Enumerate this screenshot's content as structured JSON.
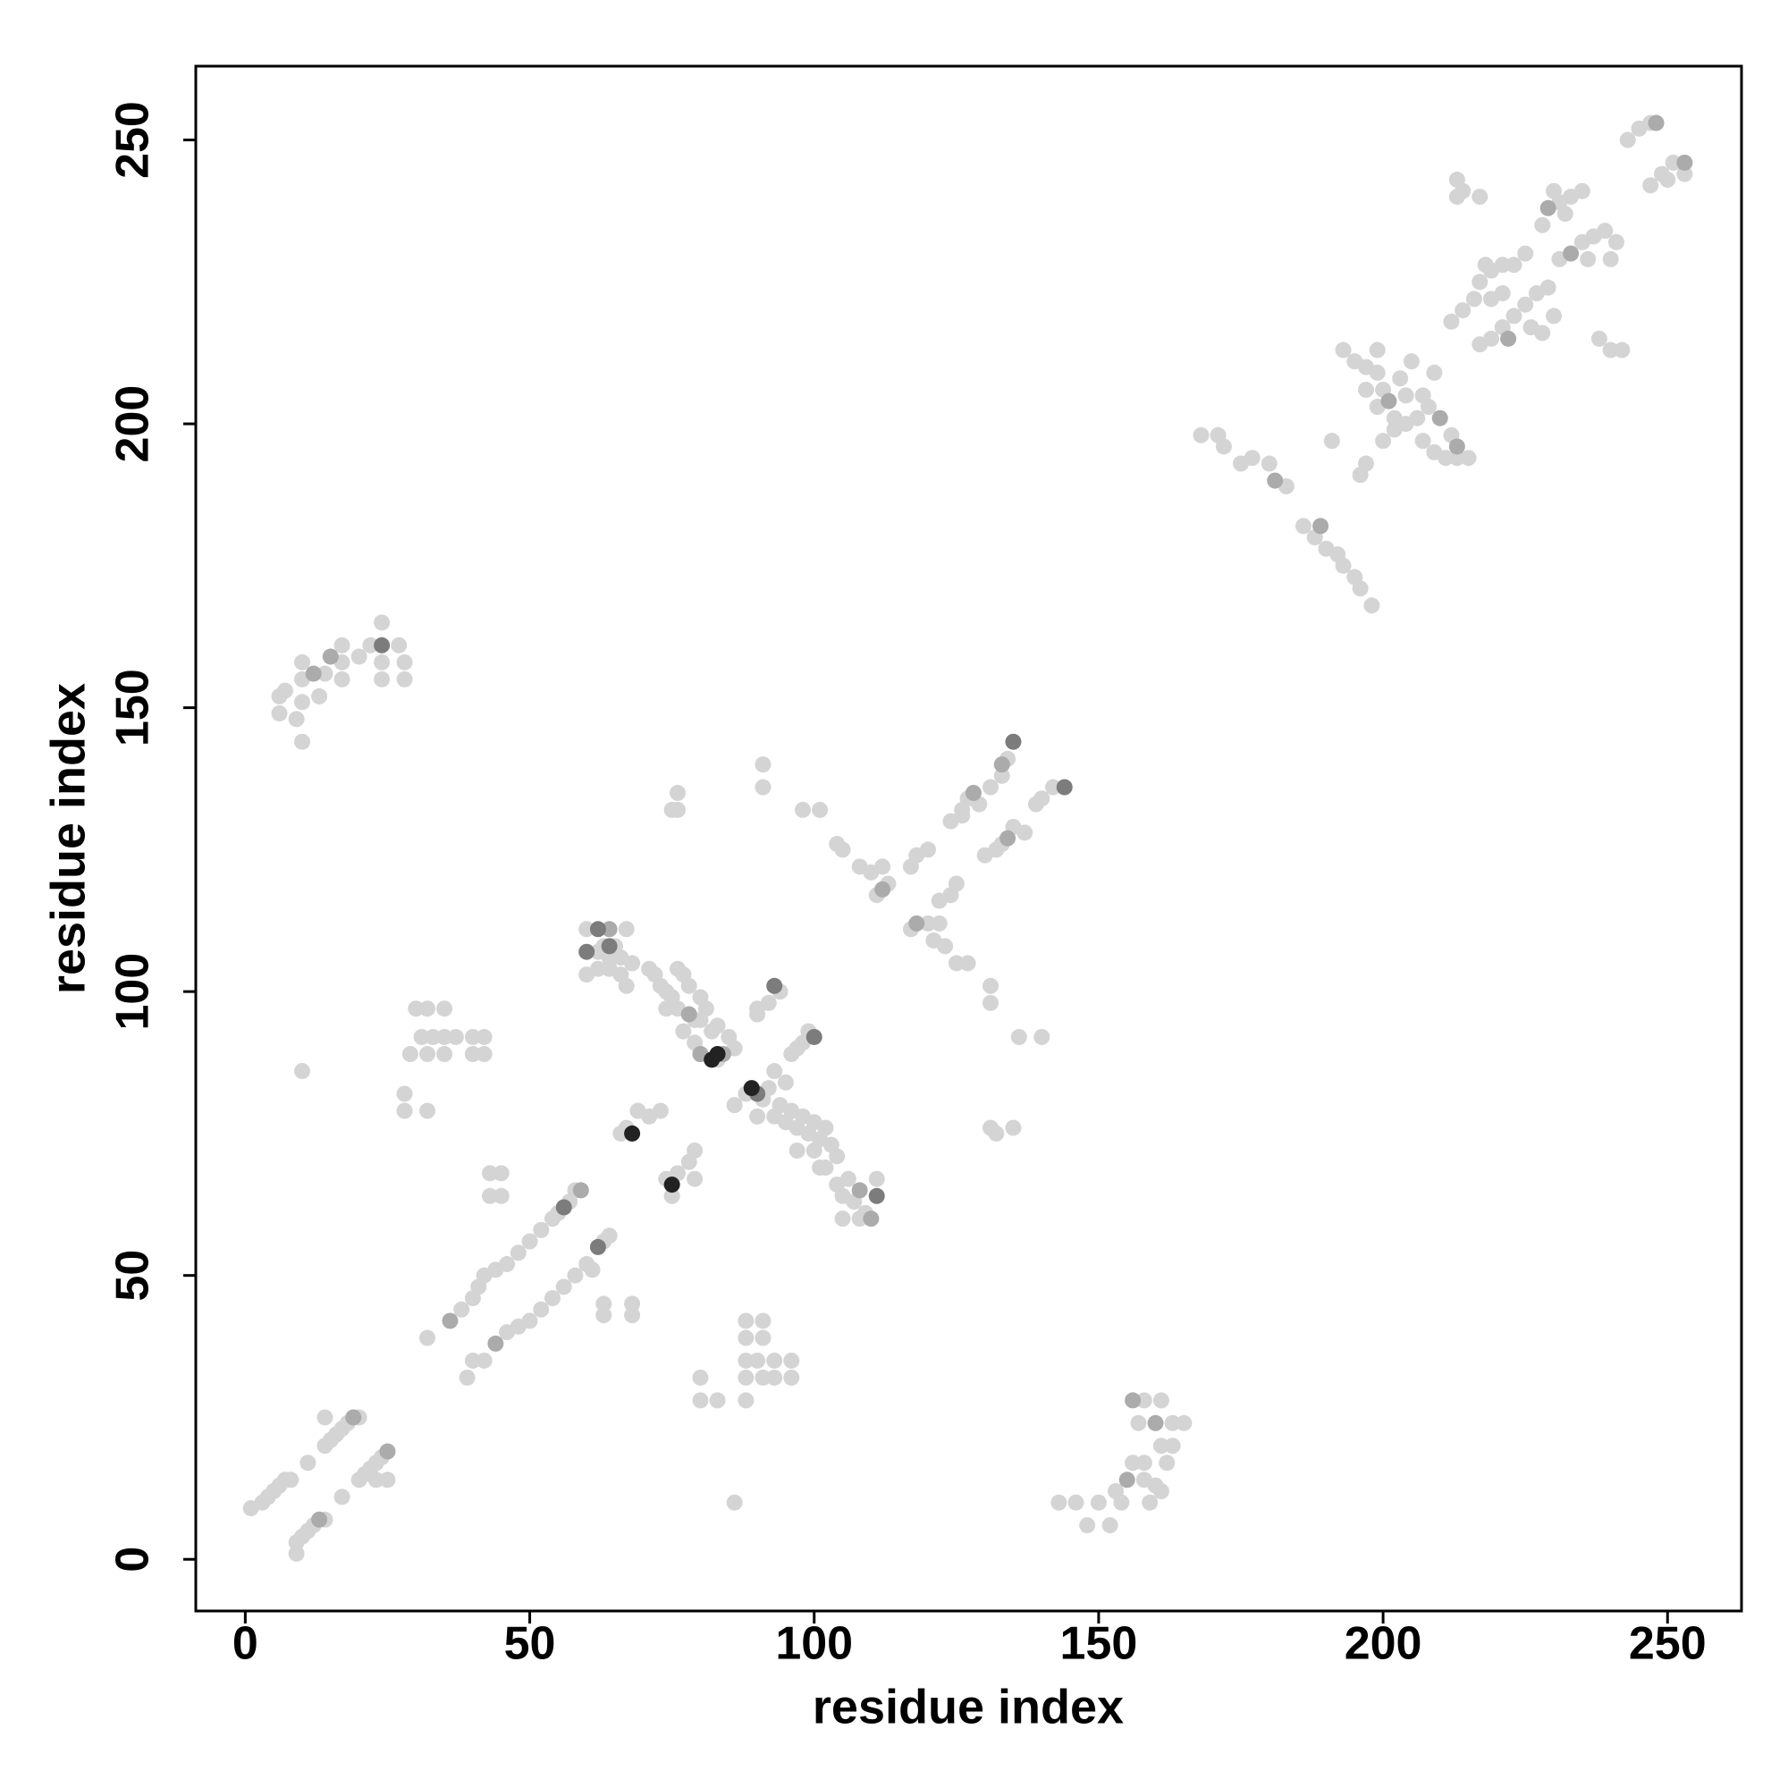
{
  "chart_data": {
    "type": "scatter",
    "x_label": "residue index",
    "y_label": "residue index",
    "xlim": [
      -8.7,
      263
    ],
    "ylim": [
      -9.1,
      263
    ],
    "xticks": [
      0,
      50,
      100,
      150,
      200,
      250
    ],
    "yticks": [
      0,
      50,
      100,
      150,
      200,
      250
    ],
    "series": [
      {
        "color": "#d4d4d4",
        "x": [
          1,
          3,
          4,
          5,
          6,
          7,
          8,
          14,
          15,
          16,
          17,
          18,
          20,
          14,
          9,
          9,
          10,
          11,
          12,
          14,
          17,
          20,
          21,
          22,
          23,
          24,
          25,
          23,
          11,
          38,
          40,
          41,
          42,
          44,
          46,
          48,
          50,
          52,
          54,
          55,
          57,
          58,
          40,
          42,
          46,
          48,
          50,
          52,
          54,
          56,
          58,
          60,
          63,
          64,
          61,
          32,
          39,
          43,
          43,
          45,
          45,
          63,
          63,
          68,
          68,
          60,
          67,
          63,
          65,
          62,
          64,
          66,
          68,
          62,
          64,
          66,
          60,
          67,
          71,
          72,
          73,
          74,
          75,
          76,
          77,
          78,
          76,
          80,
          82,
          77,
          79,
          80,
          83,
          81,
          80,
          83,
          85,
          86,
          79,
          74,
          86,
          88,
          91,
          92,
          93,
          94,
          95,
          96,
          97,
          98,
          99,
          100,
          101,
          102,
          103,
          104,
          100,
          102,
          104,
          105,
          106,
          107,
          109,
          111,
          105,
          108,
          101,
          97,
          93,
          95,
          90,
          90,
          92,
          94,
          96,
          97,
          98,
          99,
          90,
          66,
          67,
          69,
          71,
          73,
          74,
          76,
          78,
          79,
          79,
          75,
          28,
          28,
          32,
          30,
          32,
          35,
          31,
          33,
          35,
          37,
          40,
          42,
          29,
          32,
          35,
          40,
          42,
          10,
          75,
          76,
          76,
          91,
          91,
          98,
          101,
          86,
          88,
          91,
          88,
          91,
          88,
          90,
          93,
          88,
          91,
          93,
          96,
          96,
          80,
          80,
          83,
          88,
          104,
          105,
          108,
          110,
          112,
          113,
          111,
          117,
          118,
          120,
          124,
          126,
          127,
          129,
          131,
          134,
          133,
          126,
          117,
          120,
          122,
          121,
          123,
          122,
          124,
          125,
          125,
          127,
          130,
          132,
          133,
          135,
          137,
          139,
          140,
          142,
          131,
          131,
          131,
          132,
          135,
          136,
          140,
          6,
          6,
          7,
          9,
          10,
          10,
          10,
          10,
          13,
          14,
          17,
          17,
          17,
          20,
          22,
          24,
          24,
          24,
          27,
          28,
          28,
          143,
          146,
          148,
          150,
          152,
          153,
          154,
          157,
          158,
          156,
          158,
          161,
          161,
          160,
          162,
          163,
          165,
          159,
          158,
          161,
          163,
          168,
          171,
          172,
          175,
          177,
          180,
          183,
          186,
          188,
          190,
          192,
          193,
          195,
          196,
          198,
          191,
          196,
          197,
          193,
          195,
          197,
          199,
          200,
          203,
          205,
          197,
          199,
          202,
          204,
          207,
          209,
          199,
          200,
          202,
          204,
          206,
          208,
          212,
          215,
          207,
          209,
          211,
          213,
          213,
          213,
          214,
          217,
          212,
          214,
          216,
          217,
          218,
          219,
          221,
          223,
          219,
          221,
          225,
          228,
          230,
          231,
          233,
          235,
          232,
          217,
          219,
          221,
          223,
          225,
          227,
          229,
          226,
          228,
          230,
          231,
          235,
          237,
          239,
          241,
          240,
          236,
          238,
          240,
          242,
          243,
          245,
          247,
          247,
          249,
          251,
          253,
          250
        ],
        "values": [
          9,
          10,
          11,
          12,
          13,
          14,
          14,
          20,
          21,
          22,
          23,
          24,
          25,
          25,
          1,
          3,
          4,
          5,
          6,
          7,
          11,
          14,
          15,
          16,
          17,
          18,
          14,
          14,
          17,
          44,
          46,
          48,
          50,
          51,
          52,
          54,
          56,
          58,
          60,
          61,
          63,
          65,
          35,
          35,
          40,
          41,
          42,
          44,
          46,
          48,
          50,
          52,
          56,
          57,
          51,
          39,
          32,
          68,
          64,
          68,
          64,
          45,
          43,
          45,
          43,
          111,
          111,
          108,
          108,
          107,
          106,
          106,
          105,
          104,
          104,
          103,
          103,
          101,
          104,
          103,
          101,
          100,
          99,
          104,
          103,
          101,
          97,
          95,
          93,
          93,
          91,
          89,
          88,
          97,
          99,
          94,
          92,
          90,
          95,
          97,
          80,
          82,
          81,
          83,
          78,
          80,
          77,
          79,
          76,
          78,
          75,
          77,
          74,
          76,
          73,
          71,
          72,
          69,
          66,
          64,
          67,
          63,
          61,
          67,
          60,
          60,
          69,
          72,
          86,
          84,
          78,
          97,
          98,
          100,
          89,
          90,
          91,
          93,
          96,
          75,
          76,
          79,
          78,
          79,
          67,
          68,
          70,
          72,
          67,
          64,
          82,
          79,
          79,
          97,
          97,
          97,
          92,
          92,
          92,
          92,
          92,
          92,
          89,
          89,
          89,
          89,
          89,
          86,
          132,
          135,
          132,
          140,
          136,
          132,
          132,
          10,
          42,
          42,
          39,
          39,
          35,
          35,
          35,
          32,
          32,
          32,
          32,
          35,
          32,
          28,
          28,
          28,
          126,
          125,
          122,
          121,
          122,
          119,
          117,
          122,
          124,
          125,
          130,
          132,
          134,
          133,
          136,
          141,
          138,
          131,
          111,
          112,
          112,
          109,
          108,
          116,
          117,
          119,
          105,
          105,
          124,
          125,
          126,
          129,
          128,
          133,
          134,
          136,
          101,
          98,
          76,
          75,
          76,
          92,
          92,
          149,
          152,
          153,
          148,
          151,
          155,
          158,
          144,
          152,
          156,
          155,
          158,
          161,
          159,
          161,
          158,
          165,
          155,
          161,
          158,
          155,
          10,
          10,
          6,
          10,
          6,
          12,
          10,
          24,
          28,
          17,
          17,
          28,
          20,
          13,
          17,
          24,
          24,
          10,
          14,
          12,
          20,
          198,
          198,
          196,
          193,
          194,
          193,
          189,
          182,
          180,
          178,
          177,
          175,
          173,
          171,
          168,
          197,
          191,
          193,
          213,
          211,
          210,
          209,
          206,
          208,
          211,
          206,
          203,
          201,
          205,
          205,
          209,
          213,
          197,
          199,
          200,
          201,
          203,
          198,
          194,
          197,
          195,
          194,
          194,
          243,
          240,
          241,
          240,
          218,
          220,
          222,
          225,
          228,
          227,
          228,
          228,
          222,
          223,
          230,
          235,
          241,
          239,
          240,
          241,
          237,
          214,
          215,
          217,
          219,
          221,
          223,
          224,
          217,
          216,
          219,
          229,
          232,
          233,
          234,
          232,
          229,
          229,
          215,
          213,
          213,
          250,
          252,
          253,
          242,
          244,
          246,
          244,
          243
        ]
      },
      {
        "color": "#ababab",
        "x": [
          13,
          19,
          25,
          36,
          44,
          59,
          64,
          78,
          80,
          84,
          108,
          110,
          133,
          134,
          128,
          112,
          118,
          181,
          189,
          229,
          233,
          248,
          253,
          15,
          12,
          155,
          156,
          160,
          201,
          213,
          222,
          210
        ],
        "values": [
          7,
          25,
          19,
          42,
          38,
          65,
          111,
          96,
          89,
          89,
          65,
          60,
          140,
          127,
          135,
          118,
          112,
          190,
          182,
          238,
          230,
          253,
          246,
          159,
          156,
          14,
          28,
          24,
          204,
          196,
          215,
          201
        ]
      },
      {
        "color": "#7c7c7c",
        "x": [
          100,
          135,
          144,
          111,
          62,
          64,
          60,
          56,
          93,
          90,
          62,
          24
        ],
        "values": [
          92,
          144,
          136,
          64,
          111,
          108,
          107,
          62,
          101,
          82,
          55,
          161
        ]
      },
      {
        "color": "#222222",
        "x": [
          68,
          75,
          89,
          83,
          82
        ],
        "values": [
          75,
          66,
          83,
          89,
          88
        ]
      }
    ]
  }
}
